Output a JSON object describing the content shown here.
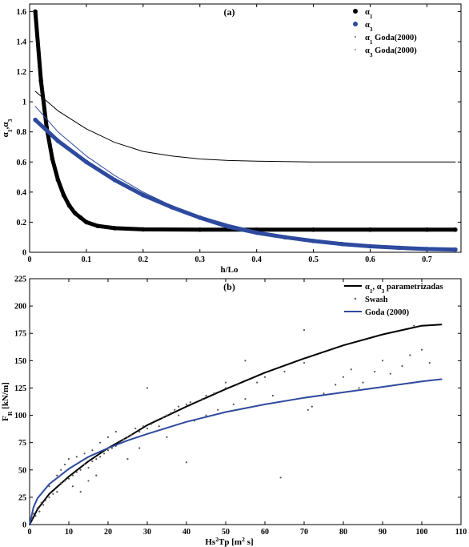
{
  "chart_data": [
    {
      "type": "line",
      "title": "(a)",
      "xlabel": "h/Lo",
      "ylabel": "α1,α3",
      "xlim": [
        0,
        0.76
      ],
      "ylim": [
        0,
        1.65
      ],
      "xticks": [
        "0",
        "0.1",
        "0.2",
        "0.3",
        "0.4",
        "0.5",
        "0.6",
        "0.7"
      ],
      "yticks": [
        "0",
        "0.2",
        "0.4",
        "0.6",
        "0.8",
        "1",
        "1.2",
        "1.4",
        "1.6"
      ],
      "grid": false,
      "legend_position": "top-right",
      "series": [
        {
          "name": "α1",
          "color": "#000000",
          "style": "thick-dots",
          "x": [
            0.01,
            0.02,
            0.03,
            0.04,
            0.05,
            0.06,
            0.07,
            0.08,
            0.09,
            0.1,
            0.12,
            0.15,
            0.2,
            0.3,
            0.4,
            0.5,
            0.6,
            0.7,
            0.75
          ],
          "y": [
            1.6,
            1.14,
            0.83,
            0.62,
            0.48,
            0.38,
            0.31,
            0.26,
            0.23,
            0.2,
            0.175,
            0.16,
            0.152,
            0.15,
            0.15,
            0.15,
            0.15,
            0.15,
            0.15
          ]
        },
        {
          "name": "α3",
          "color": "#2e4a9e",
          "style": "thick-dots",
          "x": [
            0.01,
            0.05,
            0.1,
            0.15,
            0.2,
            0.25,
            0.3,
            0.35,
            0.4,
            0.45,
            0.5,
            0.55,
            0.6,
            0.65,
            0.7,
            0.75
          ],
          "y": [
            0.88,
            0.74,
            0.6,
            0.48,
            0.38,
            0.3,
            0.23,
            0.17,
            0.13,
            0.1,
            0.075,
            0.055,
            0.04,
            0.03,
            0.022,
            0.018
          ]
        },
        {
          "name": "α1 Goda(2000)",
          "color": "#000000",
          "style": "thin",
          "x": [
            0.01,
            0.05,
            0.1,
            0.15,
            0.2,
            0.25,
            0.3,
            0.35,
            0.4,
            0.5,
            0.6,
            0.7,
            0.75
          ],
          "y": [
            1.07,
            0.94,
            0.82,
            0.73,
            0.67,
            0.64,
            0.62,
            0.61,
            0.605,
            0.6,
            0.6,
            0.6,
            0.6
          ]
        },
        {
          "name": "α3 Goda(2000)",
          "color": "#2e4a9e",
          "style": "thin",
          "x": [
            0.01,
            0.05,
            0.1,
            0.15,
            0.2,
            0.25,
            0.3,
            0.35,
            0.4,
            0.45,
            0.5,
            0.55,
            0.6,
            0.65,
            0.7,
            0.75
          ],
          "y": [
            0.97,
            0.8,
            0.64,
            0.51,
            0.4,
            0.31,
            0.24,
            0.185,
            0.14,
            0.105,
            0.078,
            0.058,
            0.043,
            0.032,
            0.024,
            0.019
          ]
        }
      ]
    },
    {
      "type": "scatter",
      "title": "(b)",
      "xlabel": "Hs²Tp [m² s]",
      "ylabel": "FR [kN/m]",
      "xlim": [
        0,
        110
      ],
      "ylim": [
        0,
        225
      ],
      "xticks": [
        "0",
        "10",
        "20",
        "30",
        "40",
        "50",
        "60",
        "70",
        "80",
        "90",
        "100",
        "110"
      ],
      "yticks": [
        "0",
        "25",
        "50",
        "75",
        "100",
        "125",
        "150",
        "175",
        "200",
        "225"
      ],
      "grid": false,
      "legend_position": "top-right",
      "series": [
        {
          "name": "α1, α3 parametrizadas",
          "color": "#000000",
          "style": "line",
          "x": [
            0,
            2,
            5,
            10,
            15,
            20,
            25,
            30,
            40,
            50,
            60,
            70,
            80,
            90,
            100,
            105
          ],
          "y": [
            0,
            14,
            28,
            44,
            58,
            70,
            80,
            91,
            108,
            124,
            139,
            152,
            164,
            174,
            182,
            183
          ]
        },
        {
          "name": "Swash",
          "color": "#555555",
          "style": "points",
          "x": [
            0.5,
            1,
            1.5,
            2,
            2.5,
            3,
            3.5,
            4,
            5,
            5,
            6,
            6,
            7,
            7,
            8,
            8,
            9,
            9,
            10,
            10,
            11,
            11,
            12,
            12,
            13,
            13,
            14,
            14,
            15,
            15,
            16,
            16,
            17,
            17,
            18,
            18,
            19,
            20,
            20,
            21,
            22,
            22,
            23,
            24,
            25,
            25,
            26,
            27,
            28,
            28,
            29,
            30,
            30,
            31,
            32,
            33,
            34,
            35,
            35,
            36,
            37,
            38,
            38,
            40,
            40,
            41,
            42,
            44,
            45,
            45,
            47,
            48,
            50,
            50,
            52,
            53,
            55,
            55,
            58,
            60,
            62,
            64,
            65,
            70,
            70,
            71,
            72,
            75,
            78,
            80,
            82,
            84,
            85,
            88,
            90,
            92,
            95,
            97,
            98,
            100,
            102
          ],
          "y": [
            5,
            10,
            8,
            15,
            12,
            20,
            18,
            22,
            25,
            35,
            28,
            40,
            30,
            45,
            38,
            50,
            40,
            55,
            42,
            60,
            45,
            35,
            48,
            62,
            50,
            30,
            55,
            65,
            52,
            40,
            58,
            68,
            60,
            45,
            62,
            75,
            65,
            68,
            80,
            70,
            72,
            85,
            75,
            78,
            80,
            60,
            82,
            88,
            85,
            70,
            90,
            88,
            125,
            92,
            95,
            90,
            98,
            100,
            80,
            102,
            105,
            100,
            108,
            110,
            57,
            112,
            95,
            115,
            118,
            100,
            120,
            105,
            125,
            130,
            110,
            128,
            115,
            150,
            130,
            135,
            118,
            43,
            140,
            148,
            178,
            105,
            108,
            120,
            128,
            135,
            142,
            125,
            130,
            140,
            150,
            138,
            145,
            155,
            182,
            160,
            148
          ]
        },
        {
          "name": "Goda (2000)",
          "color": "#2e4a9e",
          "style": "line",
          "x": [
            0,
            1,
            2,
            5,
            10,
            15,
            20,
            25,
            30,
            40,
            50,
            60,
            70,
            80,
            90,
            100,
            105
          ],
          "y": [
            0,
            16,
            24,
            37,
            51,
            62,
            70,
            77,
            83,
            94,
            103,
            110,
            116,
            121,
            126,
            131,
            133
          ]
        }
      ]
    }
  ]
}
